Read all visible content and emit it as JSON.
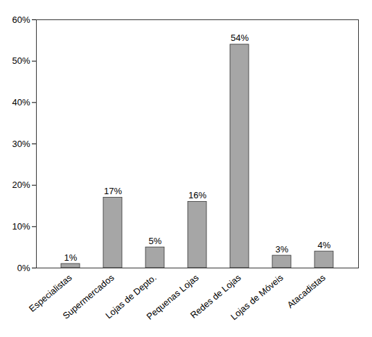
{
  "chart_data": {
    "type": "bar",
    "categories": [
      "Especialistas",
      "Supermercados",
      "Lojas de Depto.",
      "Pequenas Lojas",
      "Redes de Lojas",
      "Lojas de Móveis",
      "Atacadistas"
    ],
    "values": [
      1,
      17,
      5,
      16,
      54,
      3,
      4
    ],
    "value_labels": [
      "1%",
      "17%",
      "5%",
      "16%",
      "54%",
      "3%",
      "4%"
    ],
    "data_labels": true,
    "color": "#a6a6a6",
    "ylim": [
      0,
      60
    ],
    "yticks": [
      {
        "value": 0,
        "label": "0%"
      },
      {
        "value": 10,
        "label": "10%"
      },
      {
        "value": 20,
        "label": "20%"
      },
      {
        "value": 30,
        "label": "30%"
      },
      {
        "value": 40,
        "label": "40%"
      },
      {
        "value": 50,
        "label": "50%"
      },
      {
        "value": 60,
        "label": "60%"
      }
    ],
    "grid": false
  }
}
